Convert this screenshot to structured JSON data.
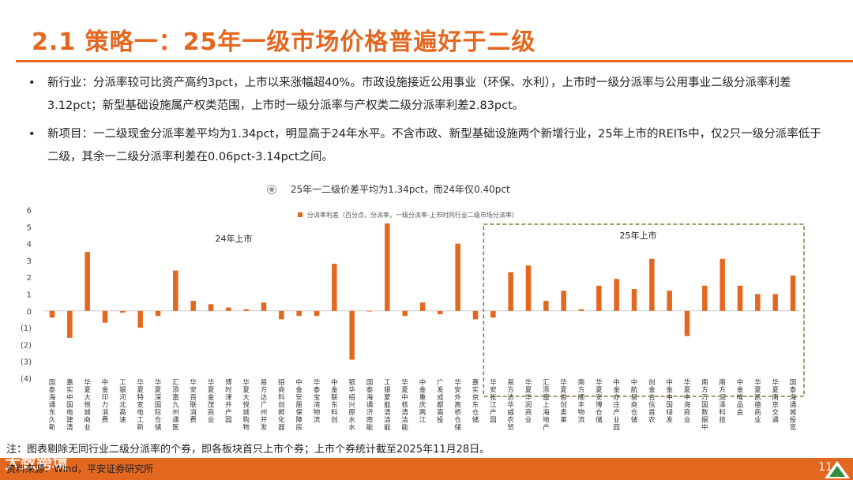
{
  "slide": {
    "title": "2.1 策略一：25年一级市场价格普遍好于二级",
    "page_number": "11",
    "bullets": [
      "新行业：分派率较可比资产高约3pct，上市以来涨幅超40%。市政设施接近公用事业（环保、水利），上市时一级分派率与公用事业二级分派率利差3.12pct；新型基础设施属产权类范围，上市时一级分派率与产权类二级分派率利差2.83pct。",
      "新项目：一二级现金分派率差平均为1.34pct，明显高于24年水平。不含市政、新型基础设施两个新增行业，25年上市的REITs中，仅2只一级分派率低于二级，其余一二级分派率利差在0.06pct-3.14pct之间。"
    ],
    "footnote": "注：图表剔除无同行业二级分派率的个券，即各板块首只上市个券；上市个券统计截至2025年11月28日。",
    "source": "资料来源：Wind，平安证券研究所",
    "watermark": "大数跨境"
  },
  "colors": {
    "accent": "#e4671f",
    "bar": "#e4671f",
    "box": "#8a7a3c"
  },
  "chart_data": {
    "type": "bar",
    "title": "25年一二级价差平均为1.34pct，而24年仅0.40pct",
    "legend": "分派率利差（百分点，分派率，一级分派率-上市时同行业二级市场分派率）",
    "ylim": [
      -4,
      6
    ],
    "yticks": [
      "6",
      "5",
      "4",
      "3",
      "2",
      "1",
      "0",
      "(1)",
      "(2)",
      "(3)",
      "(4)"
    ],
    "grid": false,
    "annotations": [
      "24年上市",
      "25年上市"
    ],
    "highlight_start_index": 25,
    "categories": [
      "国泰海通东久新经济",
      "嘉实中国电建清洁能源",
      "华夏大悦城商业",
      "中金印力消费",
      "工银河北高速",
      "华夏特变电工新能源",
      "华夏深国际仓储物流",
      "汇添富九州通医药",
      "华安百联消费",
      "华夏金茂商业",
      "博时津开产园",
      "华夏大悦城购物中心",
      "易方达广州开发区",
      "招商科创孵化器",
      "中金安居保障房",
      "华泰宝湾物流",
      "中金联东科创",
      "银华绍兴原水水利",
      "国泰海通济南能源",
      "工银蒙能清洁能源",
      "华夏中核清洁能源",
      "中金重庆两江",
      "广发成都高投",
      "华安外高桥仓储",
      "嘉实京东仓储",
      "华安张江产园",
      "易方达华威农贸",
      "华夏华润商业",
      "汇添富上海地产",
      "华夏首创奥莱",
      "南方顺丰物流",
      "华夏安博仓储",
      "中金亦庄产业园",
      "中航易商仓储",
      "创金合信首农",
      "中金中国绿发",
      "华夏中海商业",
      "南方万国数据中心",
      "南方润泽科技",
      "中金唯品会",
      "华夏凯德商业",
      "华夏南京交通",
      "国泰海通城投宽庭"
    ],
    "values": [
      -0.4,
      -1.6,
      3.5,
      -0.7,
      -0.1,
      -1.0,
      -0.3,
      2.4,
      0.6,
      0.4,
      0.2,
      0.1,
      0.5,
      -0.5,
      -0.3,
      -0.3,
      2.8,
      -2.9,
      0.0,
      5.2,
      -0.3,
      0.5,
      -0.2,
      4.0,
      -0.5,
      -0.4,
      2.3,
      2.7,
      0.6,
      1.2,
      0.1,
      1.5,
      1.9,
      1.3,
      3.1,
      1.2,
      -1.5,
      1.5,
      3.1,
      1.5,
      1.0,
      1.0,
      2.1
    ]
  }
}
